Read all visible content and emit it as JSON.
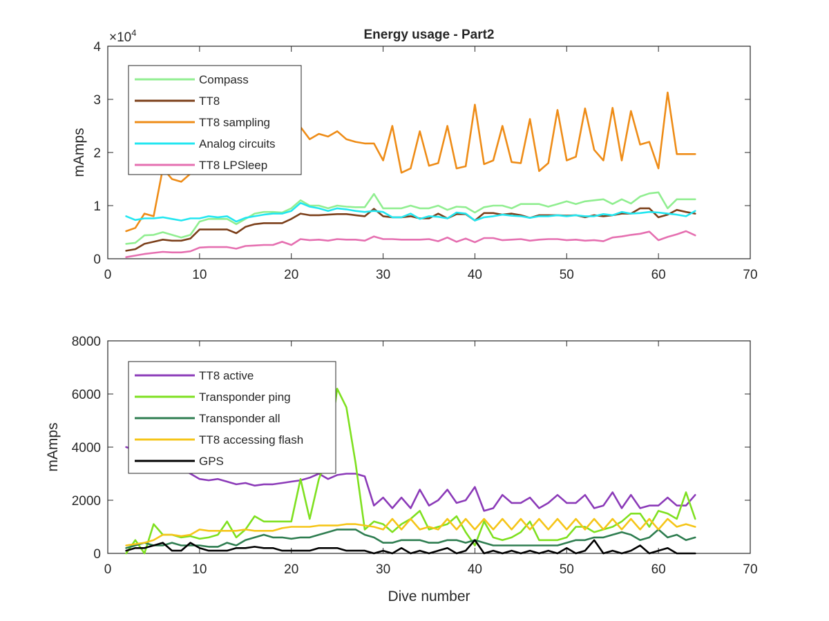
{
  "chart_data": [
    {
      "type": "line",
      "title": "Energy usage - Part2",
      "xlabel": "",
      "ylabel": "mAmps",
      "xlim": [
        0,
        70
      ],
      "ylim": [
        0,
        40000
      ],
      "xticks": [
        "0",
        "10",
        "20",
        "30",
        "40",
        "50",
        "60",
        "70"
      ],
      "yticks": [
        "0",
        "1",
        "2",
        "3",
        "4"
      ],
      "y_exponent_label": "×10",
      "y_exponent_power": "4",
      "legend_position": "top-left",
      "grid": false,
      "x": [
        2,
        3,
        4,
        5,
        6,
        7,
        8,
        9,
        10,
        11,
        12,
        13,
        14,
        15,
        16,
        17,
        18,
        19,
        20,
        21,
        22,
        23,
        24,
        25,
        26,
        27,
        28,
        29,
        30,
        31,
        32,
        33,
        34,
        35,
        36,
        37,
        38,
        39,
        40,
        41,
        42,
        43,
        44,
        45,
        46,
        47,
        48,
        49,
        50,
        51,
        52,
        53,
        54,
        55,
        56,
        57,
        58,
        59,
        60,
        61,
        62,
        63,
        64
      ],
      "series": [
        {
          "name": "Compass",
          "color": "#90ee90",
          "values": [
            2800,
            3000,
            4400,
            4500,
            5000,
            4500,
            4000,
            4500,
            7000,
            7500,
            7500,
            7500,
            6500,
            7500,
            8500,
            8800,
            8800,
            8700,
            9500,
            11000,
            10000,
            10000,
            9500,
            10000,
            9800,
            9700,
            9700,
            12200,
            9500,
            9500,
            9500,
            10000,
            9500,
            9500,
            10000,
            9200,
            9800,
            9700,
            8700,
            9700,
            10000,
            10000,
            9500,
            10300,
            10300,
            10300,
            9800,
            10300,
            10800,
            10300,
            10800,
            11000,
            11200,
            10300,
            11200,
            10400,
            11700,
            12300,
            12500,
            9500,
            11200,
            11200,
            11200
          ]
        },
        {
          "name": "TT8",
          "color": "#7b3f1a",
          "values": [
            1500,
            1800,
            2800,
            3200,
            3600,
            3400,
            3400,
            3800,
            5500,
            5500,
            5500,
            5500,
            4800,
            6000,
            6500,
            6700,
            6700,
            6700,
            7500,
            8500,
            8200,
            8200,
            8300,
            8400,
            8400,
            8200,
            8000,
            9400,
            8000,
            7800,
            7800,
            8000,
            7600,
            7600,
            8500,
            7600,
            8400,
            8400,
            7200,
            8600,
            8600,
            8300,
            8500,
            8200,
            7700,
            8200,
            8200,
            8200,
            8100,
            8200,
            7800,
            8200,
            8000,
            8200,
            8500,
            8500,
            9500,
            9500,
            7800,
            8300,
            9200,
            8800,
            8500
          ]
        },
        {
          "name": "TT8 sampling",
          "color": "#ee8c17",
          "values": [
            5200,
            5800,
            8500,
            8000,
            17000,
            15000,
            14500,
            16000,
            17000,
            17500,
            17200,
            18500,
            19000,
            20500,
            22000,
            22500,
            23000,
            23300,
            24000,
            24800,
            22500,
            23500,
            23000,
            24000,
            22500,
            22000,
            21700,
            21700,
            18500,
            25000,
            16200,
            17000,
            24000,
            17500,
            18000,
            25000,
            17000,
            17400,
            29000,
            17800,
            18500,
            25000,
            18200,
            18000,
            26300,
            16500,
            18000,
            28000,
            18500,
            19200,
            28300,
            20500,
            18500,
            28400,
            18500,
            27800,
            21500,
            22000,
            17000,
            31300,
            19700,
            19700,
            19700
          ]
        },
        {
          "name": "Analog circuits",
          "color": "#22e6f0",
          "values": [
            8000,
            7300,
            7600,
            7600,
            7800,
            7500,
            7200,
            7600,
            7600,
            8000,
            7800,
            8000,
            7000,
            7700,
            8000,
            8300,
            8500,
            8500,
            9000,
            10500,
            9800,
            9500,
            9000,
            9500,
            9300,
            9000,
            8800,
            9000,
            8800,
            7800,
            7800,
            8500,
            7500,
            8000,
            7900,
            7600,
            8700,
            8500,
            7200,
            7800,
            8000,
            8300,
            8100,
            8000,
            7700,
            8000,
            8000,
            8200,
            8000,
            8200,
            8000,
            8000,
            8400,
            8200,
            8800,
            8500,
            8600,
            8800,
            8700,
            8500,
            8300,
            8000,
            9000
          ]
        },
        {
          "name": "TT8 LPSleep",
          "color": "#e56fb0",
          "values": [
            300,
            600,
            900,
            1100,
            1300,
            1200,
            1200,
            1400,
            2100,
            2200,
            2200,
            2200,
            1900,
            2400,
            2500,
            2600,
            2600,
            3200,
            2600,
            3700,
            3500,
            3600,
            3400,
            3700,
            3600,
            3600,
            3400,
            4200,
            3700,
            3700,
            3600,
            3600,
            3600,
            3700,
            3300,
            4000,
            3200,
            3800,
            3100,
            3900,
            3900,
            3500,
            3600,
            3700,
            3400,
            3600,
            3700,
            3700,
            3500,
            3600,
            3400,
            3500,
            3300,
            4000,
            4200,
            4500,
            4700,
            5100,
            3500,
            4100,
            4600,
            5200,
            4400
          ]
        }
      ]
    },
    {
      "type": "line",
      "title": "",
      "xlabel": "Dive number",
      "ylabel": "mAmps",
      "xlim": [
        0,
        70
      ],
      "ylim": [
        0,
        8000
      ],
      "xticks": [
        "0",
        "10",
        "20",
        "30",
        "40",
        "50",
        "60",
        "70"
      ],
      "yticks": [
        "0",
        "2000",
        "4000",
        "6000",
        "8000"
      ],
      "legend_position": "top-left",
      "grid": false,
      "x": [
        2,
        3,
        4,
        5,
        6,
        7,
        8,
        9,
        10,
        11,
        12,
        13,
        14,
        15,
        16,
        17,
        18,
        19,
        20,
        21,
        22,
        23,
        24,
        25,
        26,
        27,
        28,
        29,
        30,
        31,
        32,
        33,
        34,
        35,
        36,
        37,
        38,
        39,
        40,
        41,
        42,
        43,
        44,
        45,
        46,
        47,
        48,
        49,
        50,
        51,
        52,
        53,
        54,
        55,
        56,
        57,
        58,
        59,
        60,
        61,
        62,
        63,
        64
      ],
      "series": [
        {
          "name": "TT8 active",
          "color": "#8b3ab8",
          "values": [
            4000,
            3900,
            3800,
            3700,
            3500,
            3300,
            3200,
            3000,
            2800,
            2750,
            2800,
            2700,
            2600,
            2650,
            2550,
            2600,
            2600,
            2650,
            2700,
            2750,
            2850,
            3000,
            2800,
            2950,
            3000,
            3000,
            2900,
            1800,
            2100,
            1700,
            2100,
            1700,
            2400,
            1800,
            2000,
            2400,
            1900,
            2000,
            2500,
            1600,
            1700,
            2200,
            1900,
            1900,
            2100,
            1700,
            1900,
            2200,
            1900,
            1900,
            2200,
            1700,
            1800,
            2300,
            1700,
            2200,
            1700,
            1800,
            1800,
            2100,
            1800,
            1800,
            2200
          ]
        },
        {
          "name": "Transponder ping",
          "color": "#7ee01f",
          "values": [
            0,
            500,
            0,
            1100,
            700,
            700,
            600,
            650,
            550,
            600,
            700,
            1200,
            600,
            900,
            1400,
            1200,
            1200,
            1200,
            1200,
            2800,
            1300,
            2800,
            3700,
            6200,
            5500,
            3400,
            900,
            1200,
            1100,
            800,
            1100,
            1300,
            1600,
            900,
            1000,
            1100,
            1400,
            800,
            300,
            1200,
            600,
            500,
            600,
            800,
            1200,
            500,
            500,
            500,
            600,
            1000,
            1000,
            800,
            900,
            1000,
            1200,
            1500,
            1500,
            1000,
            1600,
            1500,
            1300,
            2300,
            1300
          ]
        },
        {
          "name": "Transponder all",
          "color": "#2e7d50",
          "values": [
            200,
            300,
            400,
            300,
            300,
            400,
            300,
            300,
            300,
            250,
            250,
            400,
            300,
            500,
            600,
            700,
            600,
            600,
            550,
            600,
            600,
            700,
            800,
            900,
            900,
            900,
            700,
            600,
            400,
            400,
            500,
            500,
            500,
            400,
            400,
            500,
            500,
            400,
            500,
            400,
            300,
            300,
            300,
            300,
            300,
            300,
            300,
            300,
            400,
            500,
            500,
            600,
            600,
            700,
            800,
            700,
            500,
            600,
            900,
            600,
            700,
            500,
            600
          ]
        },
        {
          "name": "TT8 accessing flash",
          "color": "#f5c518",
          "values": [
            300,
            350,
            400,
            500,
            700,
            700,
            650,
            700,
            900,
            850,
            850,
            850,
            850,
            900,
            850,
            850,
            850,
            950,
            1000,
            1000,
            1000,
            1050,
            1050,
            1050,
            1100,
            1100,
            1050,
            1000,
            900,
            1300,
            900,
            1300,
            900,
            1000,
            900,
            1300,
            900,
            1300,
            900,
            1300,
            900,
            1300,
            900,
            1300,
            900,
            1300,
            900,
            1300,
            900,
            1300,
            900,
            1300,
            900,
            1300,
            900,
            1300,
            900,
            1300,
            900,
            1300,
            1000,
            1100,
            1000
          ]
        },
        {
          "name": "GPS",
          "color": "#000000",
          "values": [
            100,
            200,
            200,
            300,
            400,
            100,
            100,
            400,
            200,
            100,
            100,
            100,
            200,
            200,
            250,
            200,
            200,
            100,
            100,
            100,
            100,
            200,
            200,
            200,
            100,
            100,
            100,
            0,
            100,
            0,
            200,
            0,
            100,
            0,
            100,
            200,
            0,
            100,
            500,
            0,
            100,
            0,
            100,
            0,
            100,
            0,
            100,
            0,
            200,
            0,
            100,
            500,
            0,
            100,
            0,
            100,
            300,
            0,
            100,
            200,
            0,
            0,
            0
          ]
        }
      ]
    }
  ]
}
